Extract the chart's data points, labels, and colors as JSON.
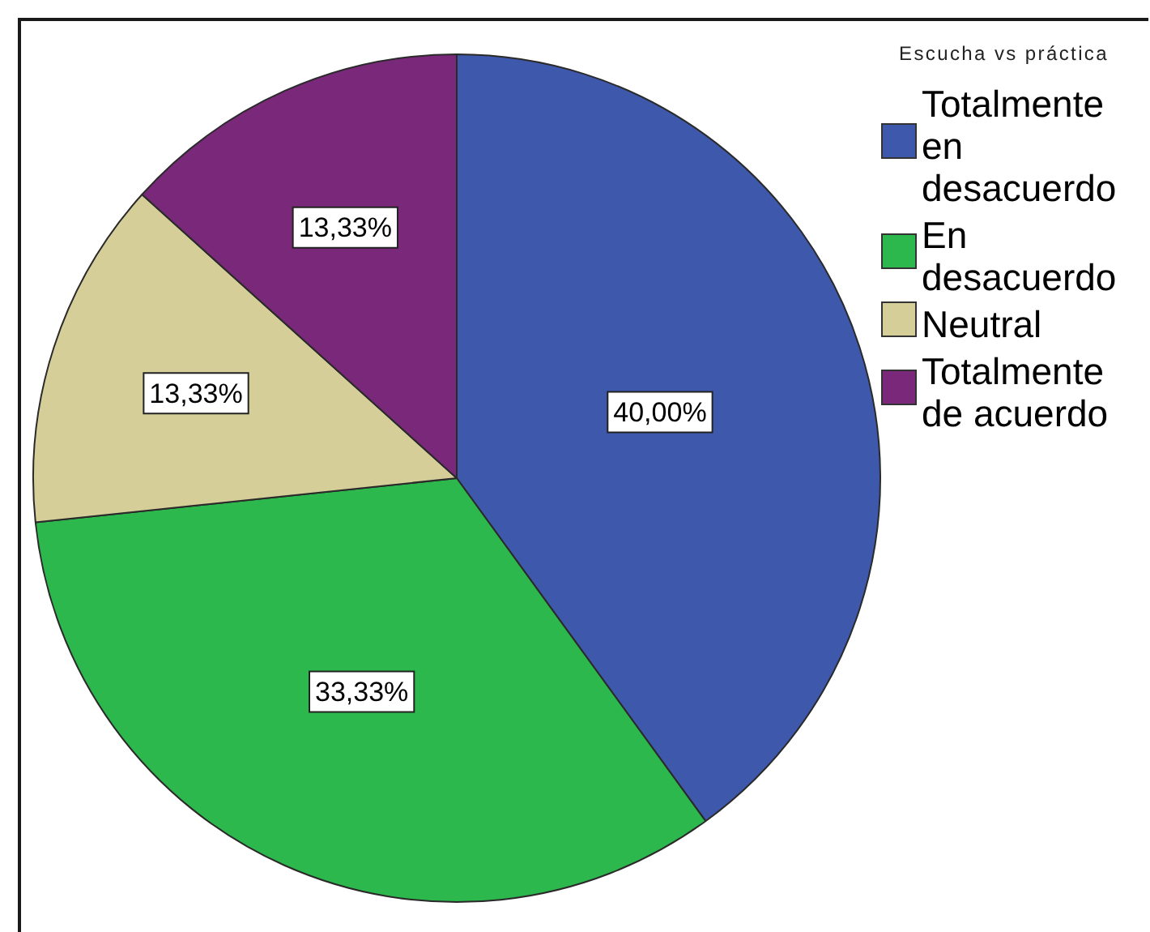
{
  "chart_data": {
    "type": "pie",
    "legend_title": "Escucha vs práctica",
    "categories": [
      "Totalmente en desacuerdo",
      "En desacuerdo",
      "Neutral",
      "Totalmente de acuerdo"
    ],
    "values": [
      40.0,
      33.33,
      13.33,
      13.33
    ],
    "colors": [
      "#3e58ac",
      "#2db84d",
      "#d5ce98",
      "#7a2879"
    ],
    "value_labels": [
      "40,00%",
      "33,33%",
      "13,33%",
      "13,33%"
    ],
    "legend": "top right"
  }
}
